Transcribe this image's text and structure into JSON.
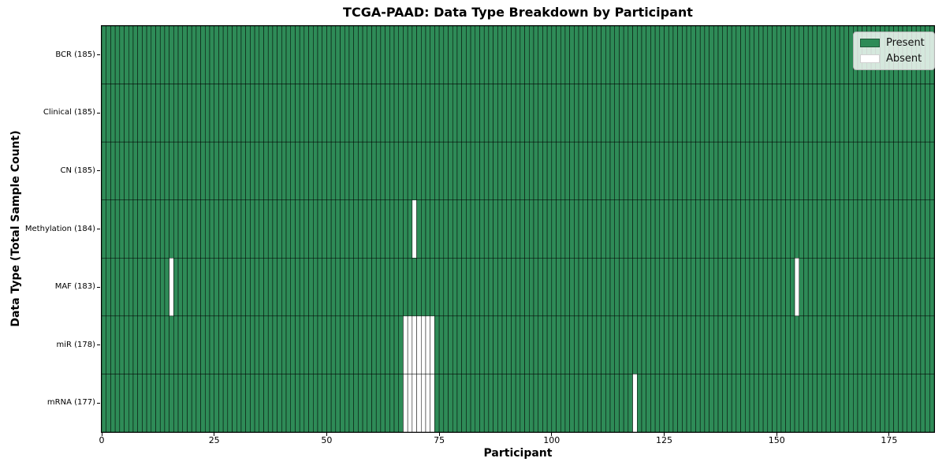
{
  "title": "TCGA-PAAD: Data Type Breakdown by Participant",
  "xlabel": "Participant",
  "ylabel": "Data Type (Total Sample Count)",
  "colors": {
    "present": "#2e8b57",
    "absent": "#ffffff",
    "edge": "#000000",
    "spine": "#000000",
    "legend_border": "#b6b6b6"
  },
  "chart_data": {
    "type": "heatmap",
    "title": "TCGA-PAAD: Data Type Breakdown by Participant",
    "xlabel": "Participant",
    "ylabel": "Data Type (Total Sample Count)",
    "n_participants": 185,
    "x_axis": {
      "range": [
        0,
        185
      ],
      "ticks": [
        0,
        25,
        50,
        75,
        100,
        125,
        150,
        175
      ]
    },
    "grid": false,
    "legend_position": "upper right",
    "legend": [
      {
        "label": "Present",
        "color": "#2e8b57"
      },
      {
        "label": "Absent",
        "color": "#ffffff"
      }
    ],
    "rows": [
      {
        "name": "BCR",
        "label": "BCR (185)",
        "total": 185,
        "absent_participants": []
      },
      {
        "name": "Clinical",
        "label": "Clinical (185)",
        "total": 185,
        "absent_participants": []
      },
      {
        "name": "CN",
        "label": "CN (185)",
        "total": 185,
        "absent_participants": []
      },
      {
        "name": "Methylation",
        "label": "Methylation (184)",
        "total": 184,
        "absent_participants": [
          69
        ]
      },
      {
        "name": "MAF",
        "label": "MAF (183)",
        "total": 183,
        "absent_participants": [
          15,
          154
        ]
      },
      {
        "name": "miR",
        "label": "miR (178)",
        "total": 178,
        "absent_participants": [
          67,
          68,
          69,
          70,
          71,
          72,
          73
        ]
      },
      {
        "name": "mRNA",
        "label": "mRNA (177)",
        "total": 177,
        "absent_participants": [
          67,
          68,
          69,
          70,
          71,
          72,
          73,
          118
        ]
      }
    ]
  }
}
